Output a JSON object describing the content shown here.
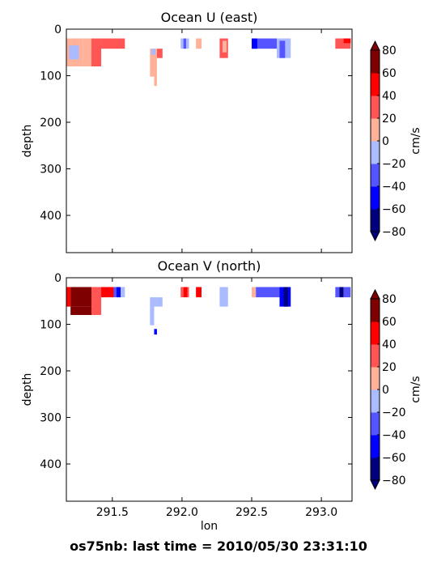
{
  "chart_data": [
    {
      "type": "heatmap",
      "title": "Ocean U (east)",
      "xlabel": "",
      "ylabel": "depth",
      "xlim": [
        291.17,
        293.22
      ],
      "ylim": [
        480,
        0
      ],
      "y_ticks": [
        "0",
        "100",
        "200",
        "300",
        "400"
      ],
      "x_ticks": [],
      "grid": false,
      "colorbar": {
        "label": "cm/s",
        "ticks": [
          "80",
          "60",
          "40",
          "20",
          "0",
          "−20",
          "−40",
          "−60",
          "−80"
        ],
        "levels": [
          -80,
          -60,
          -40,
          -20,
          0,
          20,
          40,
          60,
          80
        ],
        "extend": "both"
      },
      "cells": [
        {
          "x0": 291.17,
          "x1": 291.29,
          "y0": 20,
          "y1": 80,
          "v": 8
        },
        {
          "x0": 291.29,
          "x1": 291.35,
          "y0": 20,
          "y1": 80,
          "v": 10
        },
        {
          "x0": 291.35,
          "x1": 291.42,
          "y0": 20,
          "y1": 80,
          "v": 30
        },
        {
          "x0": 291.42,
          "x1": 291.59,
          "y0": 20,
          "y1": 42,
          "v": 30
        },
        {
          "x0": 291.19,
          "x1": 291.26,
          "y0": 35,
          "y1": 65,
          "v": -10
        },
        {
          "x0": 291.77,
          "x1": 291.8,
          "y0": 42,
          "y1": 102,
          "v": 10
        },
        {
          "x0": 291.8,
          "x1": 291.82,
          "y0": 42,
          "y1": 122,
          "v": 12
        },
        {
          "x0": 291.82,
          "x1": 291.86,
          "y0": 42,
          "y1": 62,
          "v": 30
        },
        {
          "x0": 291.78,
          "x1": 291.81,
          "y0": 42,
          "y1": 55,
          "v": -10
        },
        {
          "x0": 291.99,
          "x1": 292.01,
          "y0": 20,
          "y1": 42,
          "v": -10
        },
        {
          "x0": 292.01,
          "x1": 292.03,
          "y0": 20,
          "y1": 42,
          "v": -30
        },
        {
          "x0": 292.03,
          "x1": 292.05,
          "y0": 20,
          "y1": 42,
          "v": -10
        },
        {
          "x0": 292.1,
          "x1": 292.14,
          "y0": 20,
          "y1": 42,
          "v": 10
        },
        {
          "x0": 292.27,
          "x1": 292.33,
          "y0": 20,
          "y1": 62,
          "v": 30
        },
        {
          "x0": 292.29,
          "x1": 292.32,
          "y0": 25,
          "y1": 50,
          "v": 10
        },
        {
          "x0": 292.5,
          "x1": 292.68,
          "y0": 20,
          "y1": 42,
          "v": -30
        },
        {
          "x0": 292.5,
          "x1": 292.54,
          "y0": 20,
          "y1": 42,
          "v": -50
        },
        {
          "x0": 292.68,
          "x1": 292.78,
          "y0": 20,
          "y1": 62,
          "v": -10
        },
        {
          "x0": 292.7,
          "x1": 292.74,
          "y0": 25,
          "y1": 62,
          "v": -30
        },
        {
          "x0": 293.1,
          "x1": 293.21,
          "y0": 20,
          "y1": 42,
          "v": 30
        },
        {
          "x0": 293.16,
          "x1": 293.21,
          "y0": 20,
          "y1": 30,
          "v": 50
        }
      ]
    },
    {
      "type": "heatmap",
      "title": "Ocean V (north)",
      "xlabel": "lon",
      "ylabel": "depth",
      "xlim": [
        291.17,
        293.22
      ],
      "ylim": [
        480,
        0
      ],
      "y_ticks": [
        "0",
        "100",
        "200",
        "300",
        "400"
      ],
      "x_ticks": [
        {
          "value": 291.5,
          "label": "291.5"
        },
        {
          "value": 292.0,
          "label": "292.0"
        },
        {
          "value": 292.5,
          "label": "292.5"
        },
        {
          "value": 293.0,
          "label": "293.0"
        }
      ],
      "grid": false,
      "colorbar": {
        "label": "cm/s",
        "ticks": [
          "80",
          "60",
          "40",
          "20",
          "0",
          "−20",
          "−40",
          "−60",
          "−80"
        ],
        "levels": [
          -80,
          -60,
          -40,
          -20,
          0,
          20,
          40,
          60,
          80
        ],
        "extend": "both"
      },
      "cells": [
        {
          "x0": 291.17,
          "x1": 291.2,
          "y0": 20,
          "y1": 62,
          "v": 50
        },
        {
          "x0": 291.2,
          "x1": 291.26,
          "y0": 20,
          "y1": 62,
          "v": 65
        },
        {
          "x0": 291.2,
          "x1": 291.35,
          "y0": 62,
          "y1": 80,
          "v": 65
        },
        {
          "x0": 291.26,
          "x1": 291.35,
          "y0": 20,
          "y1": 62,
          "v": 70
        },
        {
          "x0": 291.35,
          "x1": 291.42,
          "y0": 20,
          "y1": 80,
          "v": 30
        },
        {
          "x0": 291.42,
          "x1": 291.51,
          "y0": 20,
          "y1": 42,
          "v": 50
        },
        {
          "x0": 291.51,
          "x1": 291.53,
          "y0": 20,
          "y1": 42,
          "v": -30
        },
        {
          "x0": 291.53,
          "x1": 291.56,
          "y0": 20,
          "y1": 42,
          "v": -60
        },
        {
          "x0": 291.56,
          "x1": 291.59,
          "y0": 20,
          "y1": 42,
          "v": -10
        },
        {
          "x0": 291.77,
          "x1": 291.8,
          "y0": 42,
          "y1": 102,
          "v": -10
        },
        {
          "x0": 291.8,
          "x1": 291.82,
          "y0": 42,
          "y1": 62,
          "v": -10
        },
        {
          "x0": 291.8,
          "x1": 291.82,
          "y0": 110,
          "y1": 122,
          "v": -50
        },
        {
          "x0": 291.82,
          "x1": 291.86,
          "y0": 42,
          "y1": 62,
          "v": -10
        },
        {
          "x0": 291.99,
          "x1": 292.01,
          "y0": 20,
          "y1": 42,
          "v": 30
        },
        {
          "x0": 292.01,
          "x1": 292.04,
          "y0": 20,
          "y1": 42,
          "v": 50
        },
        {
          "x0": 292.04,
          "x1": 292.05,
          "y0": 20,
          "y1": 42,
          "v": 30
        },
        {
          "x0": 292.1,
          "x1": 292.14,
          "y0": 20,
          "y1": 42,
          "v": 50
        },
        {
          "x0": 292.27,
          "x1": 292.33,
          "y0": 20,
          "y1": 62,
          "v": -10
        },
        {
          "x0": 292.5,
          "x1": 292.53,
          "y0": 20,
          "y1": 42,
          "v": 10
        },
        {
          "x0": 292.53,
          "x1": 292.7,
          "y0": 20,
          "y1": 42,
          "v": -30
        },
        {
          "x0": 292.7,
          "x1": 292.78,
          "y0": 20,
          "y1": 62,
          "v": -50
        },
        {
          "x0": 292.73,
          "x1": 292.76,
          "y0": 20,
          "y1": 62,
          "v": -65
        },
        {
          "x0": 293.1,
          "x1": 293.13,
          "y0": 20,
          "y1": 42,
          "v": -30
        },
        {
          "x0": 293.13,
          "x1": 293.16,
          "y0": 20,
          "y1": 42,
          "v": -65
        },
        {
          "x0": 293.16,
          "x1": 293.21,
          "y0": 20,
          "y1": 42,
          "v": -30
        }
      ]
    }
  ],
  "colors": {
    "levels": [
      "#00007f",
      "#0000ff",
      "#5555ff",
      "#aabbff",
      "#ffb299",
      "#ff5555",
      "#ff0000",
      "#7f0000"
    ],
    "under": "#00007f",
    "over": "#7f0000"
  },
  "footer": "os75nb: last time = 2010/05/30 23:31:10"
}
